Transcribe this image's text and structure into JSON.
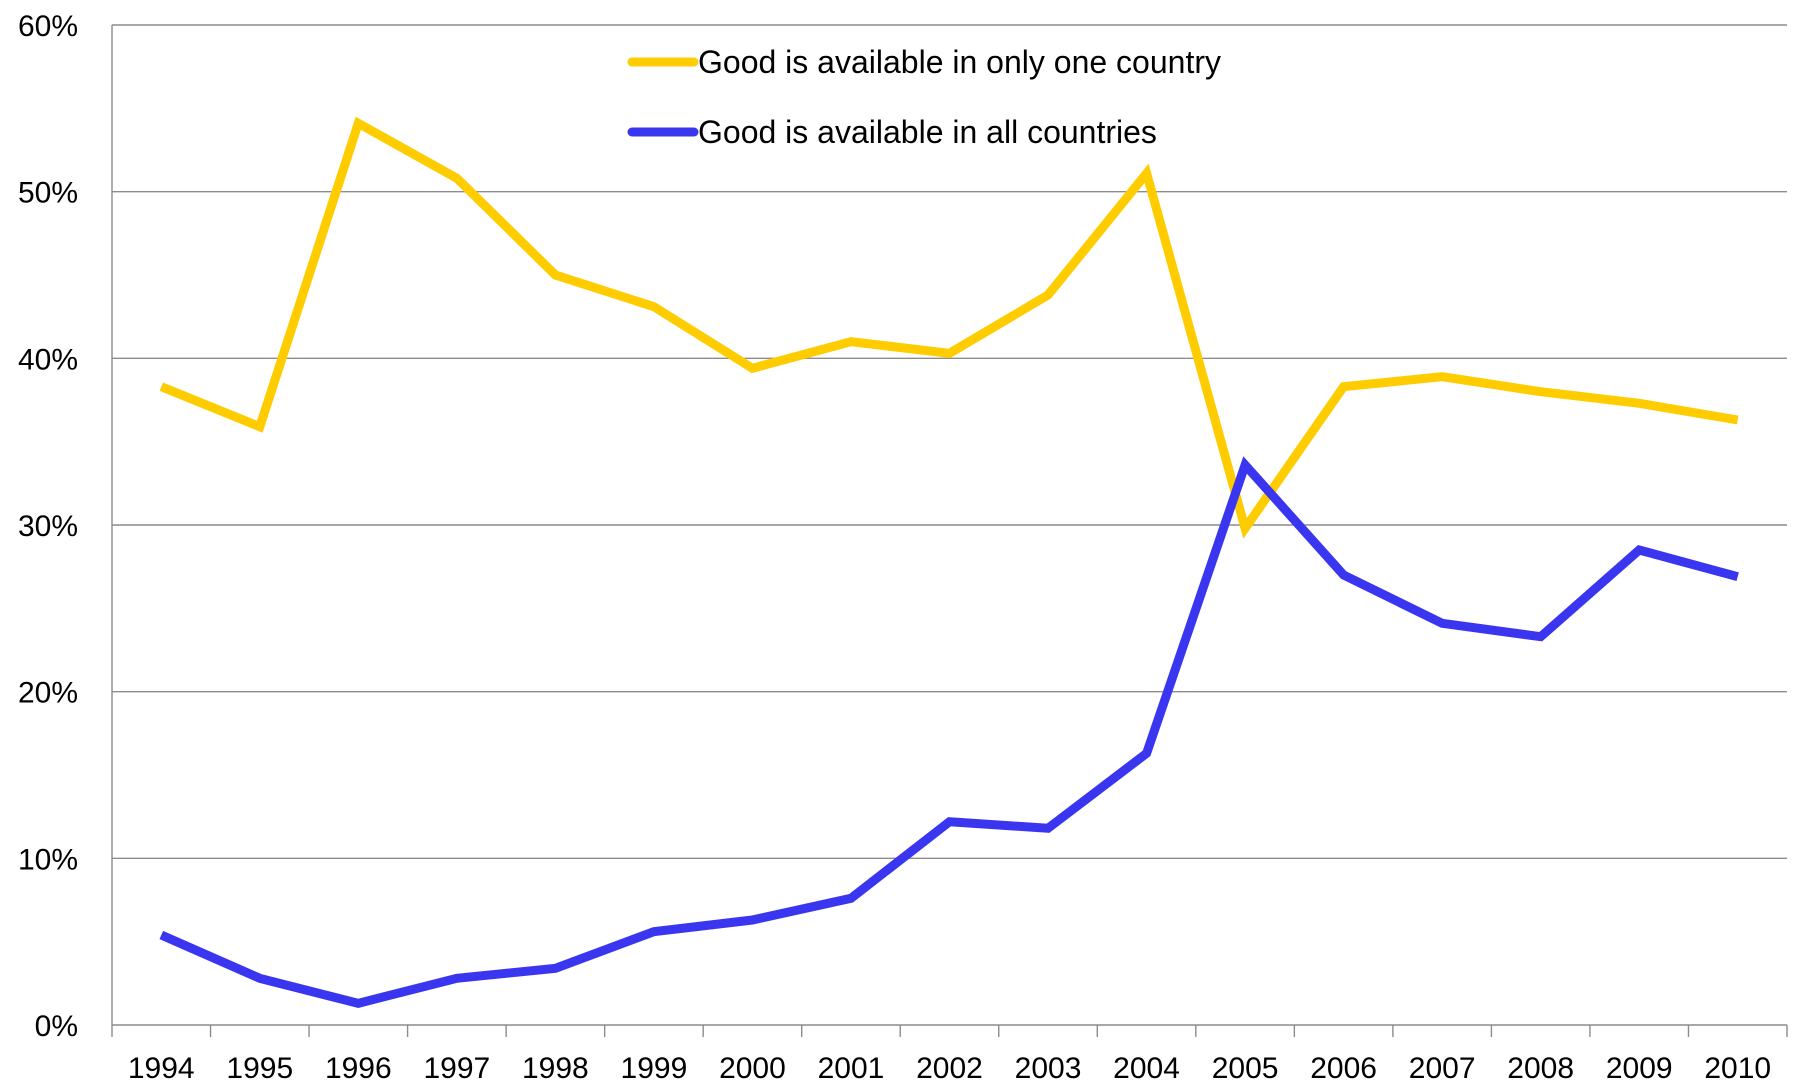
{
  "chart_data": {
    "type": "line",
    "title": "",
    "xlabel": "",
    "ylabel": "",
    "categories": [
      "1994",
      "1995",
      "1996",
      "1997",
      "1998",
      "1999",
      "2000",
      "2001",
      "2002",
      "2003",
      "2004",
      "2005",
      "2006",
      "2007",
      "2008",
      "2009",
      "2010"
    ],
    "y_ticks": [
      "0%",
      "10%",
      "20%",
      "30%",
      "40%",
      "50%",
      "60%"
    ],
    "ylim": [
      0,
      60
    ],
    "grid": true,
    "legend_position": "top-center",
    "series": [
      {
        "name": "Good is available in only one country",
        "color": "#FFCC00",
        "values": [
          38.3,
          35.9,
          54.1,
          50.8,
          45.0,
          43.1,
          39.4,
          41.0,
          40.3,
          43.8,
          51.1,
          29.8,
          38.3,
          38.9,
          38.0,
          37.3,
          36.3
        ]
      },
      {
        "name": "Good is available in all countries",
        "color": "#3A36F0",
        "values": [
          5.4,
          2.8,
          1.3,
          2.8,
          3.4,
          5.6,
          6.3,
          7.6,
          12.2,
          11.8,
          16.3,
          33.6,
          27.0,
          24.1,
          23.3,
          28.5,
          26.9
        ]
      }
    ]
  }
}
